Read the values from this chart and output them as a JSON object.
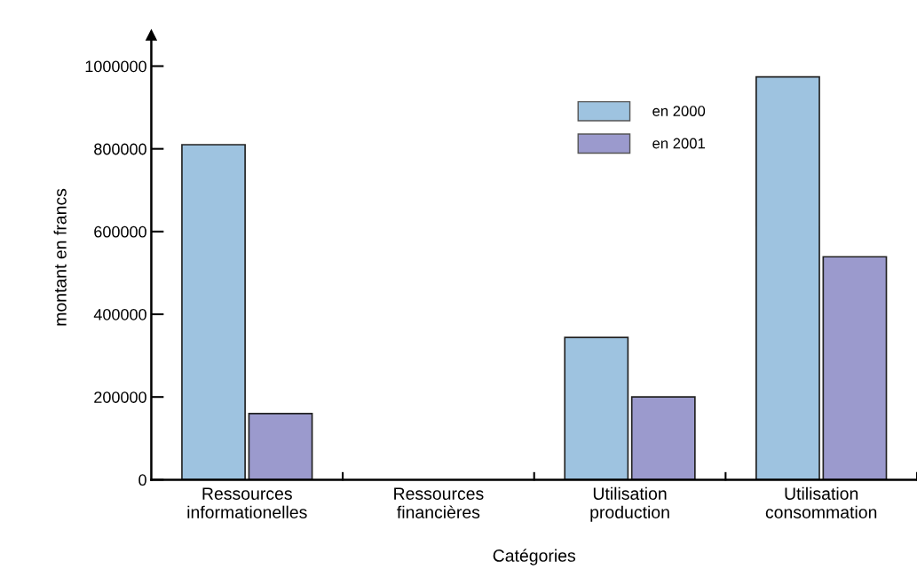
{
  "chart_data": {
    "type": "bar",
    "xlabel": "Catégories",
    "ylabel": "montant en francs",
    "categories": [
      "Ressources\ninformationelles",
      "Ressources\nfinancières",
      "Utilisation\nproduction",
      "Utilisation\nconsommation"
    ],
    "series": [
      {
        "name": "en 2000",
        "color": "#9ec3e0",
        "values": [
          810000,
          null,
          344000,
          974000
        ]
      },
      {
        "name": "en 2001",
        "color": "#9b9acd",
        "values": [
          160000,
          null,
          200000,
          539000
        ]
      }
    ],
    "ylim": [
      0,
      1075000
    ],
    "yticks": [
      0,
      200000,
      400000,
      600000,
      800000,
      1000000
    ],
    "grid": false,
    "legend": "top right"
  }
}
